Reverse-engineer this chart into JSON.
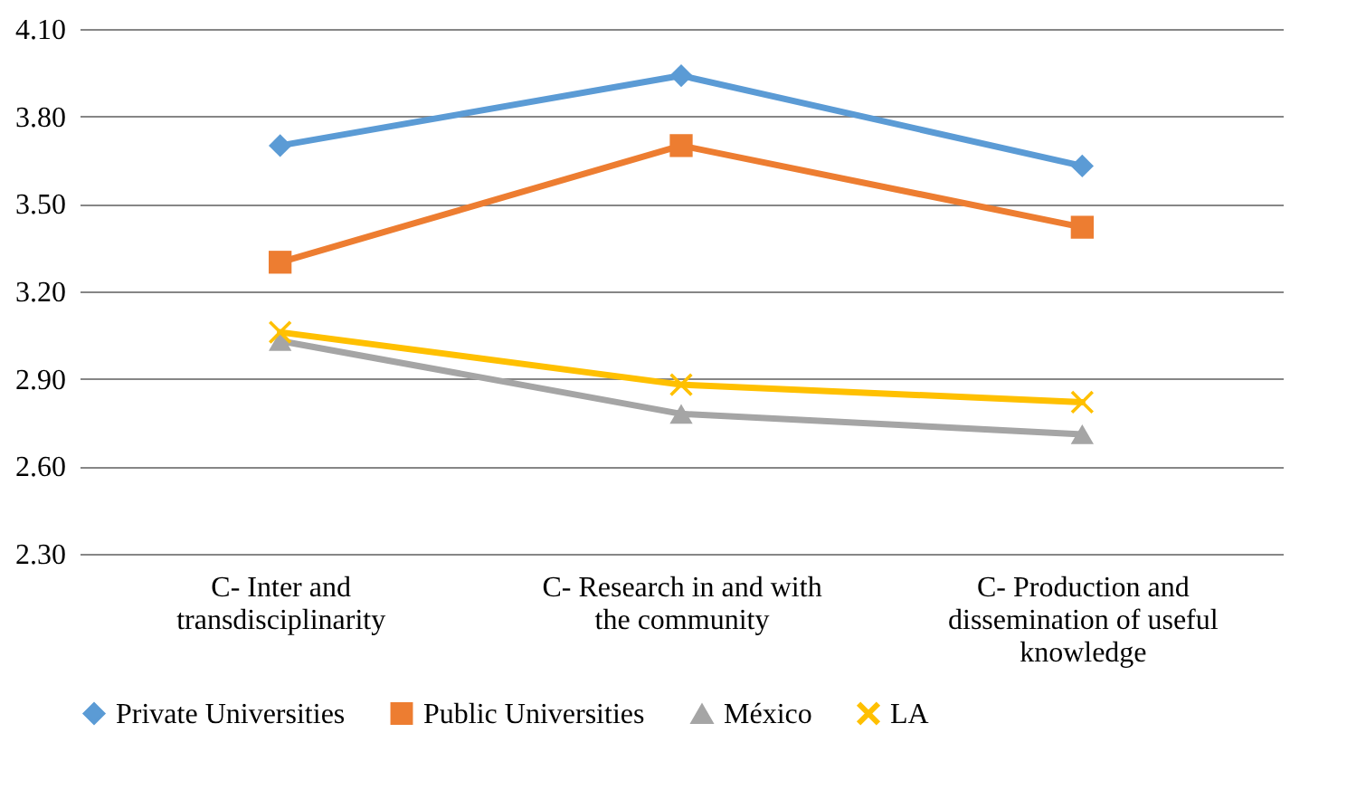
{
  "chart_data": {
    "type": "line",
    "categories": [
      "C- Inter and transdisciplinarity",
      "C- Research in and with the community",
      "C- Production and dissemination of useful knowledge"
    ],
    "series": [
      {
        "name": "Private Universities",
        "color": "#5b9bd5",
        "marker": "diamond",
        "values": [
          3.7,
          3.94,
          3.63
        ]
      },
      {
        "name": "Public Universities",
        "color": "#ed7d31",
        "marker": "square",
        "values": [
          3.3,
          3.7,
          3.42
        ]
      },
      {
        "name": "México",
        "color": "#a5a5a5",
        "marker": "triangle",
        "values": [
          3.03,
          2.78,
          2.71
        ]
      },
      {
        "name": "LA",
        "color": "#ffc000",
        "marker": "cross",
        "values": [
          3.06,
          2.88,
          2.82
        ]
      }
    ],
    "ylim": [
      2.3,
      4.1
    ],
    "yticks": [
      {
        "value": 2.3,
        "label": "2.30"
      },
      {
        "value": 2.6,
        "label": "2.60"
      },
      {
        "value": 2.9,
        "label": "2.90"
      },
      {
        "value": 3.2,
        "label": "3.20"
      },
      {
        "value": 3.5,
        "label": "3.50"
      },
      {
        "value": 3.8,
        "label": "3.80"
      },
      {
        "value": 4.1,
        "label": "4.10"
      }
    ],
    "grid": "y",
    "legend": "bottom"
  }
}
